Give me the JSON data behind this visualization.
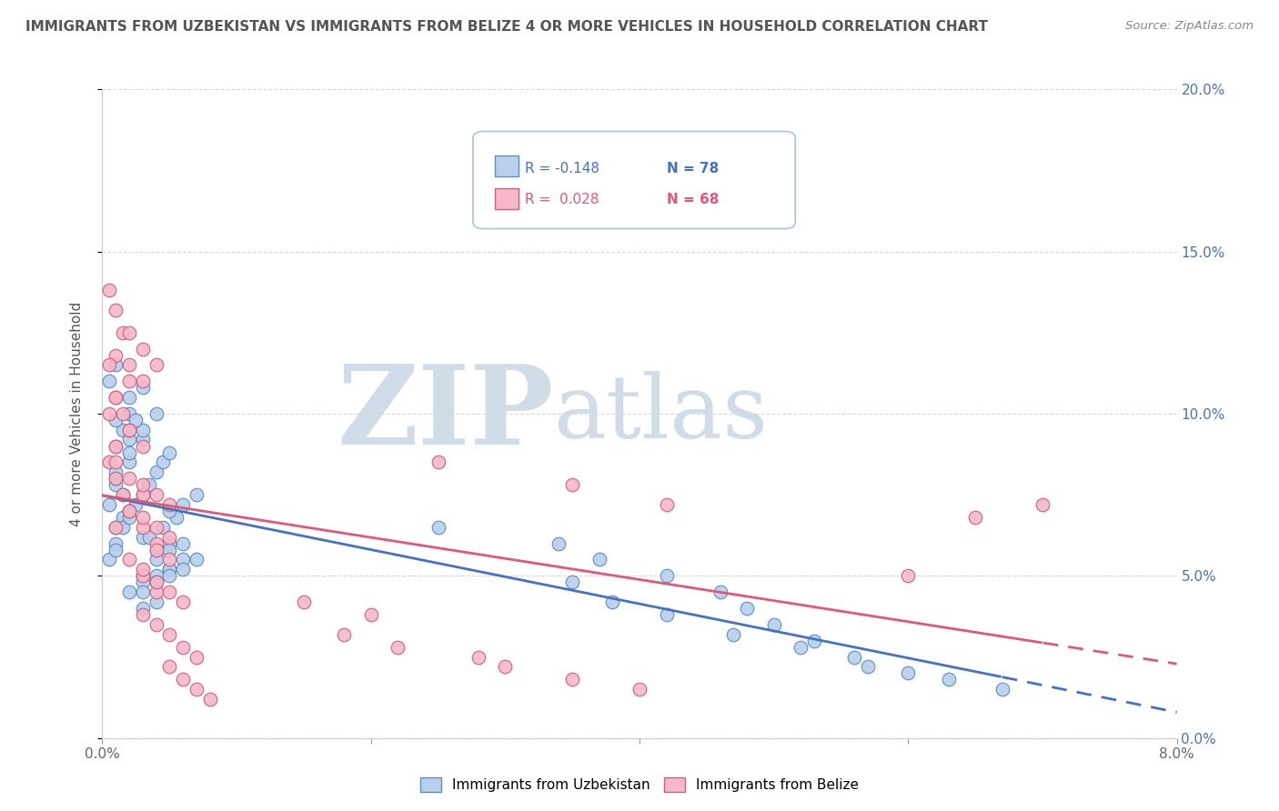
{
  "title": "IMMIGRANTS FROM UZBEKISTAN VS IMMIGRANTS FROM BELIZE 4 OR MORE VEHICLES IN HOUSEHOLD CORRELATION CHART",
  "source": "Source: ZipAtlas.com",
  "ylabel": "4 or more Vehicles in Household",
  "watermark_zip": "ZIP",
  "watermark_atlas": "atlas",
  "xlim": [
    0.0,
    0.08
  ],
  "ylim": [
    0.0,
    0.2
  ],
  "legend_blue_r": "R = -0.148",
  "legend_blue_n": "N = 78",
  "legend_pink_r": "R =  0.028",
  "legend_pink_n": "N = 68",
  "legend_blue2": "Immigrants from Uzbekistan",
  "legend_pink2": "Immigrants from Belize",
  "blue_fill": "#b8d0ea",
  "blue_edge": "#5b8ec4",
  "pink_fill": "#f4b8c8",
  "pink_edge": "#d06080",
  "blue_line": "#4472c4",
  "pink_line": "#e05878",
  "title_color": "#555555",
  "source_color": "#888888",
  "watermark_color": "#d0dce8",
  "grid_color": "#d8d8d8",
  "uzbekistan_x": [
    0.0005,
    0.001,
    0.0015,
    0.001,
    0.002,
    0.0015,
    0.001,
    0.002,
    0.001,
    0.0015,
    0.001,
    0.002,
    0.003,
    0.001,
    0.0005,
    0.002,
    0.001,
    0.003,
    0.002,
    0.001,
    0.0005,
    0.001,
    0.0015,
    0.002,
    0.0025,
    0.003,
    0.0035,
    0.004,
    0.0045,
    0.005,
    0.002,
    0.003,
    0.0025,
    0.004,
    0.003,
    0.005,
    0.006,
    0.004,
    0.005,
    0.003,
    0.002,
    0.003,
    0.004,
    0.005,
    0.004,
    0.005,
    0.006,
    0.0035,
    0.0045,
    0.0055,
    0.003,
    0.004,
    0.003,
    0.004,
    0.005,
    0.006,
    0.007,
    0.005,
    0.006,
    0.007,
    0.025,
    0.034,
    0.037,
    0.042,
    0.046,
    0.048,
    0.05,
    0.053,
    0.056,
    0.06,
    0.063,
    0.067,
    0.035,
    0.038,
    0.042,
    0.047,
    0.052,
    0.057
  ],
  "uzbekistan_y": [
    0.072,
    0.078,
    0.068,
    0.065,
    0.07,
    0.075,
    0.08,
    0.085,
    0.09,
    0.095,
    0.082,
    0.088,
    0.092,
    0.098,
    0.11,
    0.105,
    0.115,
    0.108,
    0.1,
    0.06,
    0.055,
    0.058,
    0.065,
    0.068,
    0.072,
    0.075,
    0.078,
    0.082,
    0.085,
    0.088,
    0.092,
    0.095,
    0.098,
    0.1,
    0.05,
    0.052,
    0.055,
    0.058,
    0.06,
    0.062,
    0.045,
    0.048,
    0.05,
    0.052,
    0.055,
    0.058,
    0.06,
    0.062,
    0.065,
    0.068,
    0.04,
    0.042,
    0.045,
    0.048,
    0.05,
    0.052,
    0.055,
    0.07,
    0.072,
    0.075,
    0.065,
    0.06,
    0.055,
    0.05,
    0.045,
    0.04,
    0.035,
    0.03,
    0.025,
    0.02,
    0.018,
    0.015,
    0.048,
    0.042,
    0.038,
    0.032,
    0.028,
    0.022
  ],
  "belize_x": [
    0.0005,
    0.001,
    0.0015,
    0.001,
    0.0005,
    0.002,
    0.001,
    0.0015,
    0.002,
    0.001,
    0.0005,
    0.001,
    0.0015,
    0.002,
    0.001,
    0.002,
    0.003,
    0.001,
    0.0005,
    0.002,
    0.003,
    0.001,
    0.002,
    0.003,
    0.002,
    0.003,
    0.004,
    0.002,
    0.003,
    0.004,
    0.002,
    0.003,
    0.004,
    0.003,
    0.004,
    0.005,
    0.003,
    0.004,
    0.005,
    0.004,
    0.005,
    0.003,
    0.004,
    0.005,
    0.006,
    0.003,
    0.004,
    0.005,
    0.006,
    0.007,
    0.005,
    0.006,
    0.007,
    0.008,
    0.025,
    0.035,
    0.042,
    0.06,
    0.065,
    0.07,
    0.015,
    0.02,
    0.018,
    0.022,
    0.028,
    0.03,
    0.035,
    0.04
  ],
  "belize_y": [
    0.138,
    0.132,
    0.125,
    0.118,
    0.115,
    0.11,
    0.105,
    0.1,
    0.095,
    0.09,
    0.085,
    0.08,
    0.075,
    0.07,
    0.065,
    0.115,
    0.11,
    0.105,
    0.1,
    0.095,
    0.09,
    0.085,
    0.08,
    0.075,
    0.125,
    0.12,
    0.115,
    0.07,
    0.065,
    0.06,
    0.055,
    0.05,
    0.045,
    0.078,
    0.075,
    0.072,
    0.068,
    0.065,
    0.062,
    0.058,
    0.055,
    0.052,
    0.048,
    0.045,
    0.042,
    0.038,
    0.035,
    0.032,
    0.028,
    0.025,
    0.022,
    0.018,
    0.015,
    0.012,
    0.085,
    0.078,
    0.072,
    0.05,
    0.068,
    0.072,
    0.042,
    0.038,
    0.032,
    0.028,
    0.025,
    0.022,
    0.018,
    0.015
  ]
}
